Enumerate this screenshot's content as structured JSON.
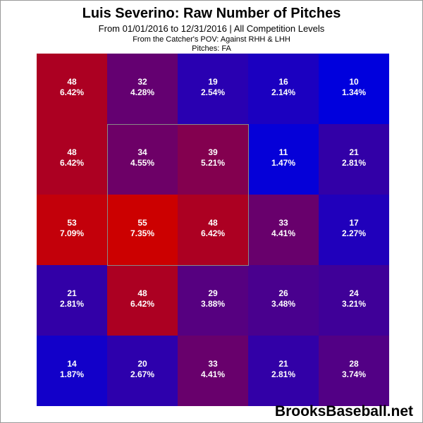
{
  "title": "Luis Severino: Raw Number of Pitches",
  "subtitle": "From 01/01/2016 to 12/31/2016 | All Competition Levels",
  "subtitle2": "From the Catcher's POV:  Against RHH & LHH",
  "subtitle3": "Pitches:  FA",
  "brand": "BrooksBaseball.net",
  "colors": {
    "high": "#cc0000",
    "low": "#0000dd",
    "zone_border": "#888888",
    "text": "#ffffff"
  },
  "chart_data": {
    "type": "heatmap",
    "title": "Luis Severino: Raw Number of Pitches",
    "rows": 5,
    "cols": 5,
    "values": [
      [
        48,
        32,
        19,
        16,
        10
      ],
      [
        48,
        34,
        39,
        11,
        21
      ],
      [
        53,
        55,
        48,
        33,
        17
      ],
      [
        21,
        48,
        29,
        26,
        24
      ],
      [
        14,
        20,
        33,
        21,
        28
      ]
    ],
    "percents": [
      [
        "6.42%",
        "4.28%",
        "2.54%",
        "2.14%",
        "1.34%"
      ],
      [
        "6.42%",
        "4.55%",
        "5.21%",
        "1.47%",
        "2.81%"
      ],
      [
        "7.09%",
        "7.35%",
        "6.42%",
        "4.41%",
        "2.27%"
      ],
      [
        "2.81%",
        "6.42%",
        "3.88%",
        "3.48%",
        "3.21%"
      ],
      [
        "1.87%",
        "2.67%",
        "4.41%",
        "2.81%",
        "3.74%"
      ]
    ],
    "strike_zone": {
      "row_start": 1,
      "row_end": 3,
      "col_start": 1,
      "col_end": 3
    }
  }
}
